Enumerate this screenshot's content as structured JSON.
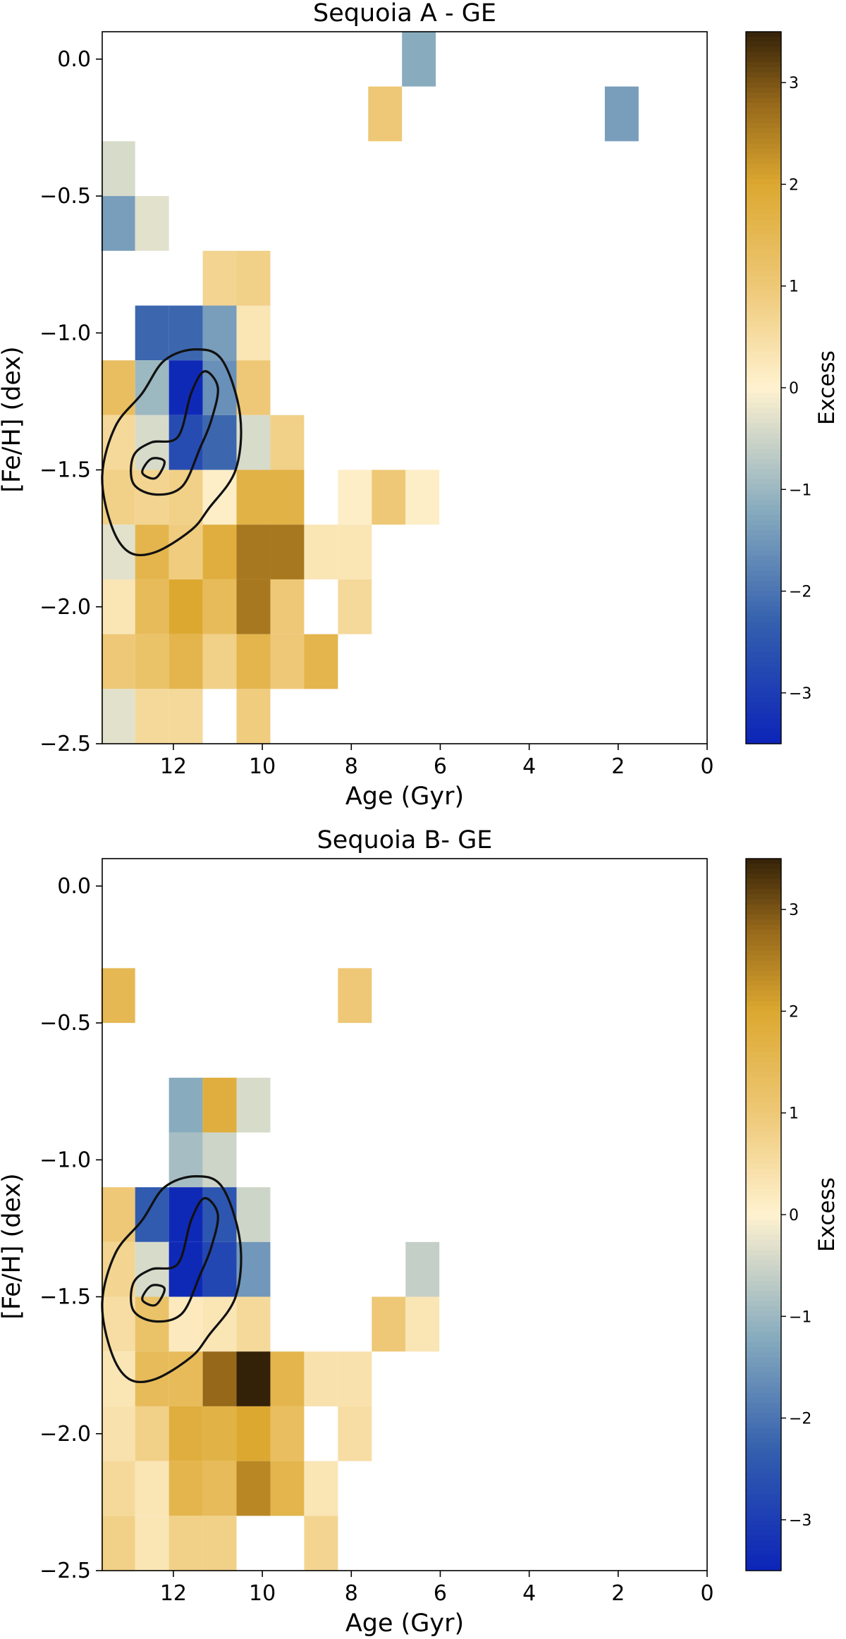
{
  "chart_data": [
    {
      "type": "heatmap",
      "title": "Sequoia A - GE",
      "xlabel": "Age (Gyr)",
      "ylabel": "[Fe/H] (dex)",
      "xlim": [
        13.6,
        0
      ],
      "ylim": [
        -2.5,
        0.1
      ],
      "xticks": [
        12,
        10,
        8,
        6,
        4,
        2,
        0
      ],
      "yticks": [
        0.0,
        -0.5,
        -1.0,
        -1.5,
        -2.0,
        -2.5
      ],
      "xtick_labels": [
        "12",
        "10",
        "8",
        "6",
        "4",
        "2",
        "0"
      ],
      "ytick_labels": [
        "0.0",
        "−0.5",
        "−1.0",
        "−1.5",
        "−2.0",
        "−2.5"
      ],
      "bin_width_gyr": 0.76,
      "bin_height_dex": 0.2,
      "colorbar": {
        "label": "Excess",
        "range": [
          -3.5,
          3.5
        ],
        "ticks": [
          3,
          2,
          1,
          0,
          -1,
          -2,
          -3
        ],
        "tick_labels": [
          "3",
          "2",
          "1",
          "0",
          "−1",
          "−2",
          "−3"
        ]
      },
      "cells": [
        {
          "age": 6.48,
          "feh": 0.0,
          "excess": -1.2
        },
        {
          "age": 7.24,
          "feh": -0.2,
          "excess": 1.0
        },
        {
          "age": 1.92,
          "feh": -0.2,
          "excess": -1.4
        },
        {
          "age": 13.24,
          "feh": -0.4,
          "excess": -0.4
        },
        {
          "age": 13.24,
          "feh": -0.6,
          "excess": -1.4
        },
        {
          "age": 12.48,
          "feh": -0.6,
          "excess": -0.3
        },
        {
          "age": 10.96,
          "feh": -0.8,
          "excess": 0.7
        },
        {
          "age": 10.2,
          "feh": -0.8,
          "excess": 0.8
        },
        {
          "age": 12.48,
          "feh": -1.0,
          "excess": -2.2
        },
        {
          "age": 11.72,
          "feh": -1.0,
          "excess": -2.2
        },
        {
          "age": 10.96,
          "feh": -1.0,
          "excess": -1.4
        },
        {
          "age": 10.2,
          "feh": -1.0,
          "excess": 0.3
        },
        {
          "age": 13.24,
          "feh": -1.2,
          "excess": 1.3
        },
        {
          "age": 12.48,
          "feh": -1.2,
          "excess": -1.0
        },
        {
          "age": 11.72,
          "feh": -1.2,
          "excess": -3.4
        },
        {
          "age": 10.96,
          "feh": -1.2,
          "excess": -1.6
        },
        {
          "age": 10.2,
          "feh": -1.2,
          "excess": 1.0
        },
        {
          "age": 13.24,
          "feh": -1.4,
          "excess": 0.6
        },
        {
          "age": 12.48,
          "feh": -1.4,
          "excess": -0.4
        },
        {
          "age": 11.72,
          "feh": -1.4,
          "excess": -2.7
        },
        {
          "age": 10.96,
          "feh": -1.4,
          "excess": -2.2
        },
        {
          "age": 10.2,
          "feh": -1.4,
          "excess": -0.4
        },
        {
          "age": 9.44,
          "feh": -1.4,
          "excess": 0.8
        },
        {
          "age": 13.24,
          "feh": -1.6,
          "excess": 0.8
        },
        {
          "age": 12.48,
          "feh": -1.6,
          "excess": 0.7
        },
        {
          "age": 11.72,
          "feh": -1.6,
          "excess": 0.8
        },
        {
          "age": 10.96,
          "feh": -1.6,
          "excess": 0.1
        },
        {
          "age": 10.2,
          "feh": -1.6,
          "excess": 1.7
        },
        {
          "age": 9.44,
          "feh": -1.6,
          "excess": 1.7
        },
        {
          "age": 7.92,
          "feh": -1.6,
          "excess": 0.1
        },
        {
          "age": 7.16,
          "feh": -1.6,
          "excess": 1.0
        },
        {
          "age": 6.4,
          "feh": -1.6,
          "excess": 0.1
        },
        {
          "age": 13.24,
          "feh": -1.8,
          "excess": -0.3
        },
        {
          "age": 12.48,
          "feh": -1.8,
          "excess": 1.6
        },
        {
          "age": 11.72,
          "feh": -1.8,
          "excess": 0.9
        },
        {
          "age": 10.96,
          "feh": -1.8,
          "excess": 1.8
        },
        {
          "age": 10.2,
          "feh": -1.8,
          "excess": 2.6
        },
        {
          "age": 9.44,
          "feh": -1.8,
          "excess": 2.6
        },
        {
          "age": 8.68,
          "feh": -1.8,
          "excess": 0.3
        },
        {
          "age": 7.92,
          "feh": -1.8,
          "excess": 0.3
        },
        {
          "age": 13.24,
          "feh": -2.0,
          "excess": 0.3
        },
        {
          "age": 12.48,
          "feh": -2.0,
          "excess": 1.4
        },
        {
          "age": 11.72,
          "feh": -2.0,
          "excess": 2.0
        },
        {
          "age": 10.96,
          "feh": -2.0,
          "excess": 1.4
        },
        {
          "age": 10.2,
          "feh": -2.0,
          "excess": 2.6
        },
        {
          "age": 9.44,
          "feh": -2.0,
          "excess": 1.0
        },
        {
          "age": 7.92,
          "feh": -2.0,
          "excess": 0.6
        },
        {
          "age": 13.24,
          "feh": -2.2,
          "excess": 1.0
        },
        {
          "age": 12.48,
          "feh": -2.2,
          "excess": 1.2
        },
        {
          "age": 11.72,
          "feh": -2.2,
          "excess": 1.6
        },
        {
          "age": 10.96,
          "feh": -2.2,
          "excess": 0.8
        },
        {
          "age": 10.2,
          "feh": -2.2,
          "excess": 1.6
        },
        {
          "age": 9.44,
          "feh": -2.2,
          "excess": 1.0
        },
        {
          "age": 8.68,
          "feh": -2.2,
          "excess": 1.6
        },
        {
          "age": 13.24,
          "feh": -2.4,
          "excess": -0.3
        },
        {
          "age": 12.48,
          "feh": -2.4,
          "excess": 0.6
        },
        {
          "age": 11.72,
          "feh": -2.4,
          "excess": 0.6
        },
        {
          "age": 10.2,
          "feh": -2.4,
          "excess": 0.9
        }
      ]
    },
    {
      "type": "heatmap",
      "title": "Sequoia B- GE",
      "xlabel": "Age (Gyr)",
      "ylabel": "[Fe/H] (dex)",
      "xlim": [
        13.6,
        0
      ],
      "ylim": [
        -2.5,
        0.1
      ],
      "xticks": [
        12,
        10,
        8,
        6,
        4,
        2,
        0
      ],
      "yticks": [
        0.0,
        -0.5,
        -1.0,
        -1.5,
        -2.0,
        -2.5
      ],
      "xtick_labels": [
        "12",
        "10",
        "8",
        "6",
        "4",
        "2",
        "0"
      ],
      "ytick_labels": [
        "0.0",
        "−0.5",
        "−1.0",
        "−1.5",
        "−2.0",
        "−2.5"
      ],
      "bin_width_gyr": 0.76,
      "bin_height_dex": 0.2,
      "colorbar": {
        "label": "Excess",
        "range": [
          -3.5,
          3.5
        ],
        "ticks": [
          3,
          2,
          1,
          0,
          -1,
          -2,
          -3
        ],
        "tick_labels": [
          "3",
          "2",
          "1",
          "0",
          "−1",
          "−2",
          "−3"
        ]
      },
      "cells": [
        {
          "age": 13.24,
          "feh": -0.4,
          "excess": 1.5
        },
        {
          "age": 7.92,
          "feh": -0.4,
          "excess": 1.0
        },
        {
          "age": 11.72,
          "feh": -0.8,
          "excess": -1.2
        },
        {
          "age": 10.96,
          "feh": -0.8,
          "excess": 1.8
        },
        {
          "age": 10.2,
          "feh": -0.8,
          "excess": -0.4
        },
        {
          "age": 11.72,
          "feh": -1.0,
          "excess": -0.9
        },
        {
          "age": 10.96,
          "feh": -1.0,
          "excess": -0.5
        },
        {
          "age": 13.24,
          "feh": -1.2,
          "excess": 1.0
        },
        {
          "age": 12.48,
          "feh": -1.2,
          "excess": -2.4
        },
        {
          "age": 11.72,
          "feh": -1.2,
          "excess": -3.4
        },
        {
          "age": 10.96,
          "feh": -1.2,
          "excess": -2.5
        },
        {
          "age": 10.2,
          "feh": -1.2,
          "excess": -0.5
        },
        {
          "age": 13.24,
          "feh": -1.4,
          "excess": 0.7
        },
        {
          "age": 12.48,
          "feh": -1.4,
          "excess": -0.4
        },
        {
          "age": 11.72,
          "feh": -1.4,
          "excess": -3.4
        },
        {
          "age": 10.96,
          "feh": -1.4,
          "excess": -2.8
        },
        {
          "age": 10.2,
          "feh": -1.4,
          "excess": -1.5
        },
        {
          "age": 6.4,
          "feh": -1.4,
          "excess": -0.6
        },
        {
          "age": 13.24,
          "feh": -1.6,
          "excess": 0.5
        },
        {
          "age": 12.48,
          "feh": -1.6,
          "excess": 1.2
        },
        {
          "age": 11.72,
          "feh": -1.6,
          "excess": 0.2
        },
        {
          "age": 10.96,
          "feh": -1.6,
          "excess": 0.3
        },
        {
          "age": 10.2,
          "feh": -1.6,
          "excess": 0.6
        },
        {
          "age": 7.16,
          "feh": -1.6,
          "excess": 1.0
        },
        {
          "age": 6.4,
          "feh": -1.6,
          "excess": 0.3
        },
        {
          "age": 13.24,
          "feh": -1.8,
          "excess": 0.3
        },
        {
          "age": 12.48,
          "feh": -1.8,
          "excess": 1.4
        },
        {
          "age": 11.72,
          "feh": -1.8,
          "excess": 1.4
        },
        {
          "age": 10.96,
          "feh": -1.8,
          "excess": 2.8
        },
        {
          "age": 10.2,
          "feh": -1.8,
          "excess": 3.5
        },
        {
          "age": 9.44,
          "feh": -1.8,
          "excess": 1.6
        },
        {
          "age": 8.68,
          "feh": -1.8,
          "excess": 0.4
        },
        {
          "age": 7.92,
          "feh": -1.8,
          "excess": 0.4
        },
        {
          "age": 13.24,
          "feh": -2.0,
          "excess": 0.4
        },
        {
          "age": 12.48,
          "feh": -2.0,
          "excess": 0.8
        },
        {
          "age": 11.72,
          "feh": -2.0,
          "excess": 1.8
        },
        {
          "age": 10.96,
          "feh": -2.0,
          "excess": 1.7
        },
        {
          "age": 10.2,
          "feh": -2.0,
          "excess": 2.0
        },
        {
          "age": 9.44,
          "feh": -2.0,
          "excess": 1.3
        },
        {
          "age": 7.92,
          "feh": -2.0,
          "excess": 0.5
        },
        {
          "age": 13.24,
          "feh": -2.2,
          "excess": 0.6
        },
        {
          "age": 12.48,
          "feh": -2.2,
          "excess": 0.3
        },
        {
          "age": 11.72,
          "feh": -2.2,
          "excess": 1.6
        },
        {
          "age": 10.96,
          "feh": -2.2,
          "excess": 1.4
        },
        {
          "age": 10.2,
          "feh": -2.2,
          "excess": 2.4
        },
        {
          "age": 9.44,
          "feh": -2.2,
          "excess": 1.6
        },
        {
          "age": 8.68,
          "feh": -2.2,
          "excess": 0.3
        },
        {
          "age": 13.24,
          "feh": -2.4,
          "excess": 0.8
        },
        {
          "age": 12.48,
          "feh": -2.4,
          "excess": 0.3
        },
        {
          "age": 11.72,
          "feh": -2.4,
          "excess": 0.8
        },
        {
          "age": 10.96,
          "feh": -2.4,
          "excess": 0.8
        },
        {
          "age": 8.68,
          "feh": -2.4,
          "excess": 0.7
        }
      ]
    }
  ],
  "contour_levels": [
    {
      "level": "outer",
      "points": [
        [
          11.5,
          -1.06
        ],
        [
          10.9,
          -1.1
        ],
        [
          10.5,
          -1.3
        ],
        [
          10.6,
          -1.5
        ],
        [
          11.2,
          -1.64
        ],
        [
          11.6,
          -1.72
        ],
        [
          12.4,
          -1.8
        ],
        [
          13.0,
          -1.8
        ],
        [
          13.4,
          -1.7
        ],
        [
          13.6,
          -1.52
        ],
        [
          13.3,
          -1.34
        ],
        [
          12.7,
          -1.22
        ],
        [
          12.2,
          -1.1
        ]
      ]
    },
    {
      "level": "middle",
      "points": [
        [
          11.3,
          -1.14
        ],
        [
          11.0,
          -1.2
        ],
        [
          11.15,
          -1.32
        ],
        [
          11.4,
          -1.42
        ],
        [
          11.8,
          -1.56
        ],
        [
          12.4,
          -1.59
        ],
        [
          12.9,
          -1.55
        ],
        [
          12.9,
          -1.45
        ],
        [
          12.5,
          -1.4
        ],
        [
          11.9,
          -1.38
        ],
        [
          11.6,
          -1.22
        ]
      ]
    },
    {
      "level": "inner",
      "points": [
        [
          12.2,
          -1.47
        ],
        [
          12.4,
          -1.53
        ],
        [
          12.7,
          -1.51
        ],
        [
          12.5,
          -1.46
        ]
      ]
    }
  ]
}
